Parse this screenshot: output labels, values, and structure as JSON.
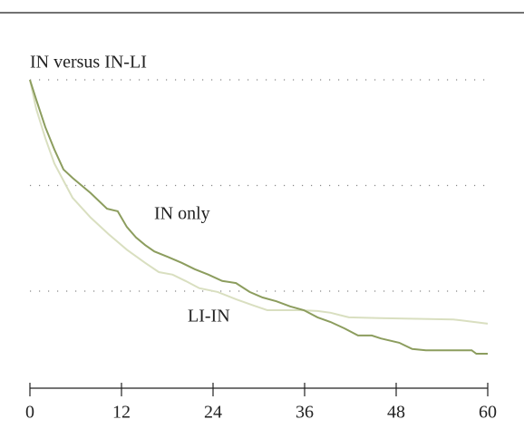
{
  "chart_data": {
    "type": "line",
    "title": "IN versus IN-LI",
    "annotations": [
      "IN only",
      "LI-IN"
    ],
    "xlim": [
      0,
      60
    ],
    "xticks": [
      0,
      12,
      24,
      36,
      48,
      60
    ],
    "ylim": [
      0.25,
      1.0
    ],
    "yticks": [
      0.5,
      0.75,
      1.0
    ],
    "grid": true,
    "series": [
      {
        "name": "IN only",
        "color": "#8c9d5e",
        "x": [
          0,
          0.83,
          2.02,
          3.21,
          4.4,
          5.58,
          7.96,
          10.1,
          11.5,
          12.7,
          13.9,
          15.1,
          16.3,
          18.1,
          19.9,
          21.6,
          23.4,
          25.2,
          27.0,
          28.8,
          30.5,
          32.3,
          34.1,
          35.9,
          37.7,
          39.4,
          41.2,
          43.0,
          44.8,
          46.0,
          48.4,
          50.1,
          51.9,
          57.9,
          58.5,
          60
        ],
        "values": [
          1.0,
          0.953,
          0.888,
          0.835,
          0.788,
          0.768,
          0.732,
          0.695,
          0.689,
          0.652,
          0.627,
          0.609,
          0.594,
          0.581,
          0.567,
          0.552,
          0.539,
          0.524,
          0.519,
          0.498,
          0.485,
          0.476,
          0.464,
          0.455,
          0.438,
          0.427,
          0.412,
          0.395,
          0.395,
          0.388,
          0.378,
          0.363,
          0.36,
          0.36,
          0.352,
          0.352
        ]
      },
      {
        "name": "LI-IN",
        "color": "#d9dfc0",
        "x": [
          0,
          0.83,
          2.02,
          3.21,
          5.58,
          7.96,
          10.3,
          12.7,
          15.1,
          16.9,
          18.7,
          20.4,
          22.2,
          24.6,
          27.0,
          29.3,
          31.1,
          35.3,
          37.7,
          39.4,
          41.8,
          45.9,
          55.5,
          60
        ],
        "values": [
          1.0,
          0.931,
          0.862,
          0.802,
          0.721,
          0.674,
          0.635,
          0.598,
          0.567,
          0.545,
          0.539,
          0.524,
          0.507,
          0.498,
          0.481,
          0.466,
          0.455,
          0.455,
          0.453,
          0.449,
          0.438,
          0.436,
          0.433,
          0.423
        ]
      }
    ]
  }
}
